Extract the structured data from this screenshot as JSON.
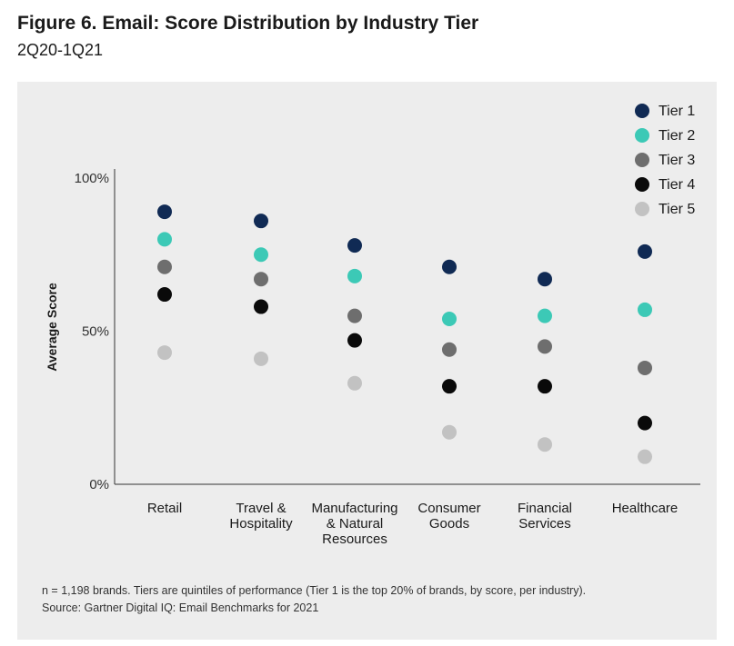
{
  "figure": {
    "title": "Figure 6. Email: Score Distribution by Industry Tier",
    "subtitle": "2Q20-1Q21",
    "footnote": "n = 1,198 brands. Tiers are quintiles of performance (Tier 1 is the top 20% of brands, by score, per industry).",
    "source": "Source: Gartner Digital IQ: Email Benchmarks for 2021"
  },
  "colors": {
    "background_panel": "#ededed",
    "axis": "#333333"
  },
  "chart_data": {
    "type": "scatter",
    "ylabel": "Average Score",
    "xlabel": "",
    "ylim": [
      0,
      100
    ],
    "y_ticks": [
      "100%",
      "50%",
      "0%"
    ],
    "y_tick_values": [
      100,
      50,
      0
    ],
    "categories": [
      [
        "Retail"
      ],
      [
        "Travel &",
        "Hospitality"
      ],
      [
        "Manufacturing",
        "& Natural",
        "Resources"
      ],
      [
        "Consumer",
        "Goods"
      ],
      [
        "Financial",
        "Services"
      ],
      [
        "Healthcare"
      ]
    ],
    "grid": false,
    "legend_position": "top-right",
    "series": [
      {
        "name": "Tier 1",
        "color": "#102a54",
        "values": [
          89,
          86,
          78,
          71,
          67,
          76
        ]
      },
      {
        "name": "Tier 2",
        "color": "#3cc9b6",
        "values": [
          80,
          75,
          68,
          54,
          55,
          57
        ]
      },
      {
        "name": "Tier 3",
        "color": "#6e6e6e",
        "values": [
          71,
          67,
          55,
          44,
          45,
          38
        ]
      },
      {
        "name": "Tier 4",
        "color": "#0a0a0a",
        "values": [
          62,
          58,
          47,
          32,
          32,
          20
        ]
      },
      {
        "name": "Tier 5",
        "color": "#c2c2c2",
        "values": [
          43,
          41,
          33,
          17,
          13,
          9
        ]
      }
    ]
  }
}
